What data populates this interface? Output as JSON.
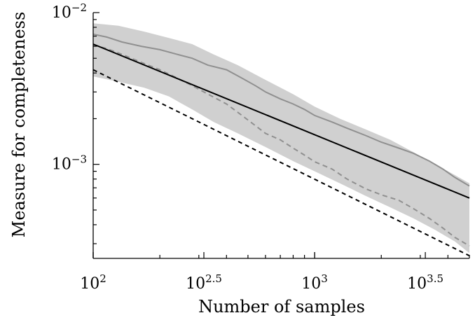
{
  "chart_data": {
    "type": "line",
    "title": "",
    "xlabel": "Number of samples",
    "ylabel": "Measure for completeness",
    "xscale": "log",
    "yscale": "log",
    "xlim": [
      100,
      5000
    ],
    "ylim": [
      0.00024,
      0.01
    ],
    "grid": false,
    "legend": "none",
    "x_ticks": [
      {
        "base": "10",
        "exp": "2",
        "value": 100
      },
      {
        "base": "10",
        "exp": "2.5",
        "value": 316.2
      },
      {
        "base": "10",
        "exp": "3",
        "value": 1000
      },
      {
        "base": "10",
        "exp": "3.5",
        "value": 3162
      }
    ],
    "y_ticks": [
      {
        "base": "10",
        "exp": "−2",
        "value": 0.01
      },
      {
        "base": "10",
        "exp": "−3",
        "value": 0.001
      }
    ],
    "colors": {
      "band": "#d0d0d0",
      "gray_line": "#909090",
      "black_line": "#000000"
    },
    "series": [
      {
        "style": "gray-solid",
        "x": [
          100,
          115,
          135,
          165,
          200,
          240,
          280,
          330,
          400,
          470,
          540,
          600,
          700,
          800,
          900,
          1000,
          1200,
          1400,
          1700,
          2000,
          2400,
          2800,
          3300,
          3800,
          4300,
          5000
        ],
        "y": [
          0.0072,
          0.0069,
          0.0064,
          0.006,
          0.0057,
          0.0053,
          0.005,
          0.0045,
          0.0042,
          0.0037,
          0.0033,
          0.003,
          0.0027,
          0.0025,
          0.0023,
          0.0021,
          0.0019,
          0.00173,
          0.00155,
          0.0014,
          0.00128,
          0.00118,
          0.00105,
          0.00093,
          0.00082,
          0.00072
        ]
      },
      {
        "style": "gray-dashed",
        "x": [
          100,
          115,
          135,
          165,
          200,
          240,
          280,
          330,
          400,
          470,
          540,
          600,
          700,
          800,
          900,
          1000,
          1200,
          1400,
          1700,
          2000,
          2400,
          2800,
          3300,
          3800,
          4300,
          5000
        ],
        "y": [
          0.0061,
          0.0058,
          0.0053,
          0.0047,
          0.0042,
          0.0037,
          0.0033,
          0.0029,
          0.0025,
          0.0021,
          0.0018,
          0.0016,
          0.00145,
          0.00128,
          0.00115,
          0.00104,
          0.00093,
          0.0008,
          0.00069,
          0.00063,
          0.00058,
          0.00051,
          0.00044,
          0.00038,
          0.00033,
          0.00029
        ]
      },
      {
        "style": "black-solid",
        "x": [
          100,
          5000
        ],
        "y": [
          0.0062,
          0.0006
        ]
      },
      {
        "style": "black-dashed",
        "x": [
          100,
          5000
        ],
        "y": [
          0.0042,
          0.00025
        ]
      }
    ],
    "band_upper": {
      "x": [
        100,
        130,
        170,
        220,
        280,
        350,
        450,
        600,
        800,
        1000,
        1300,
        1700,
        2200,
        2800,
        3500,
        4300,
        5000
      ],
      "y": [
        0.0085,
        0.0082,
        0.0075,
        0.0068,
        0.0062,
        0.0053,
        0.0045,
        0.0036,
        0.0029,
        0.0024,
        0.002,
        0.0017,
        0.00145,
        0.0012,
        0.001,
        0.00085,
        0.00075
      ]
    },
    "band_lower": {
      "x": [
        100,
        130,
        170,
        220,
        280,
        350,
        450,
        600,
        800,
        1000,
        1300,
        1700,
        2200,
        2800,
        3500,
        4300,
        5000
      ],
      "y": [
        0.0038,
        0.0035,
        0.0032,
        0.0028,
        0.0023,
        0.0019,
        0.0016,
        0.0013,
        0.00105,
        0.0009,
        0.00075,
        0.00062,
        0.00052,
        0.00044,
        0.00037,
        0.00031,
        0.00026
      ]
    }
  }
}
